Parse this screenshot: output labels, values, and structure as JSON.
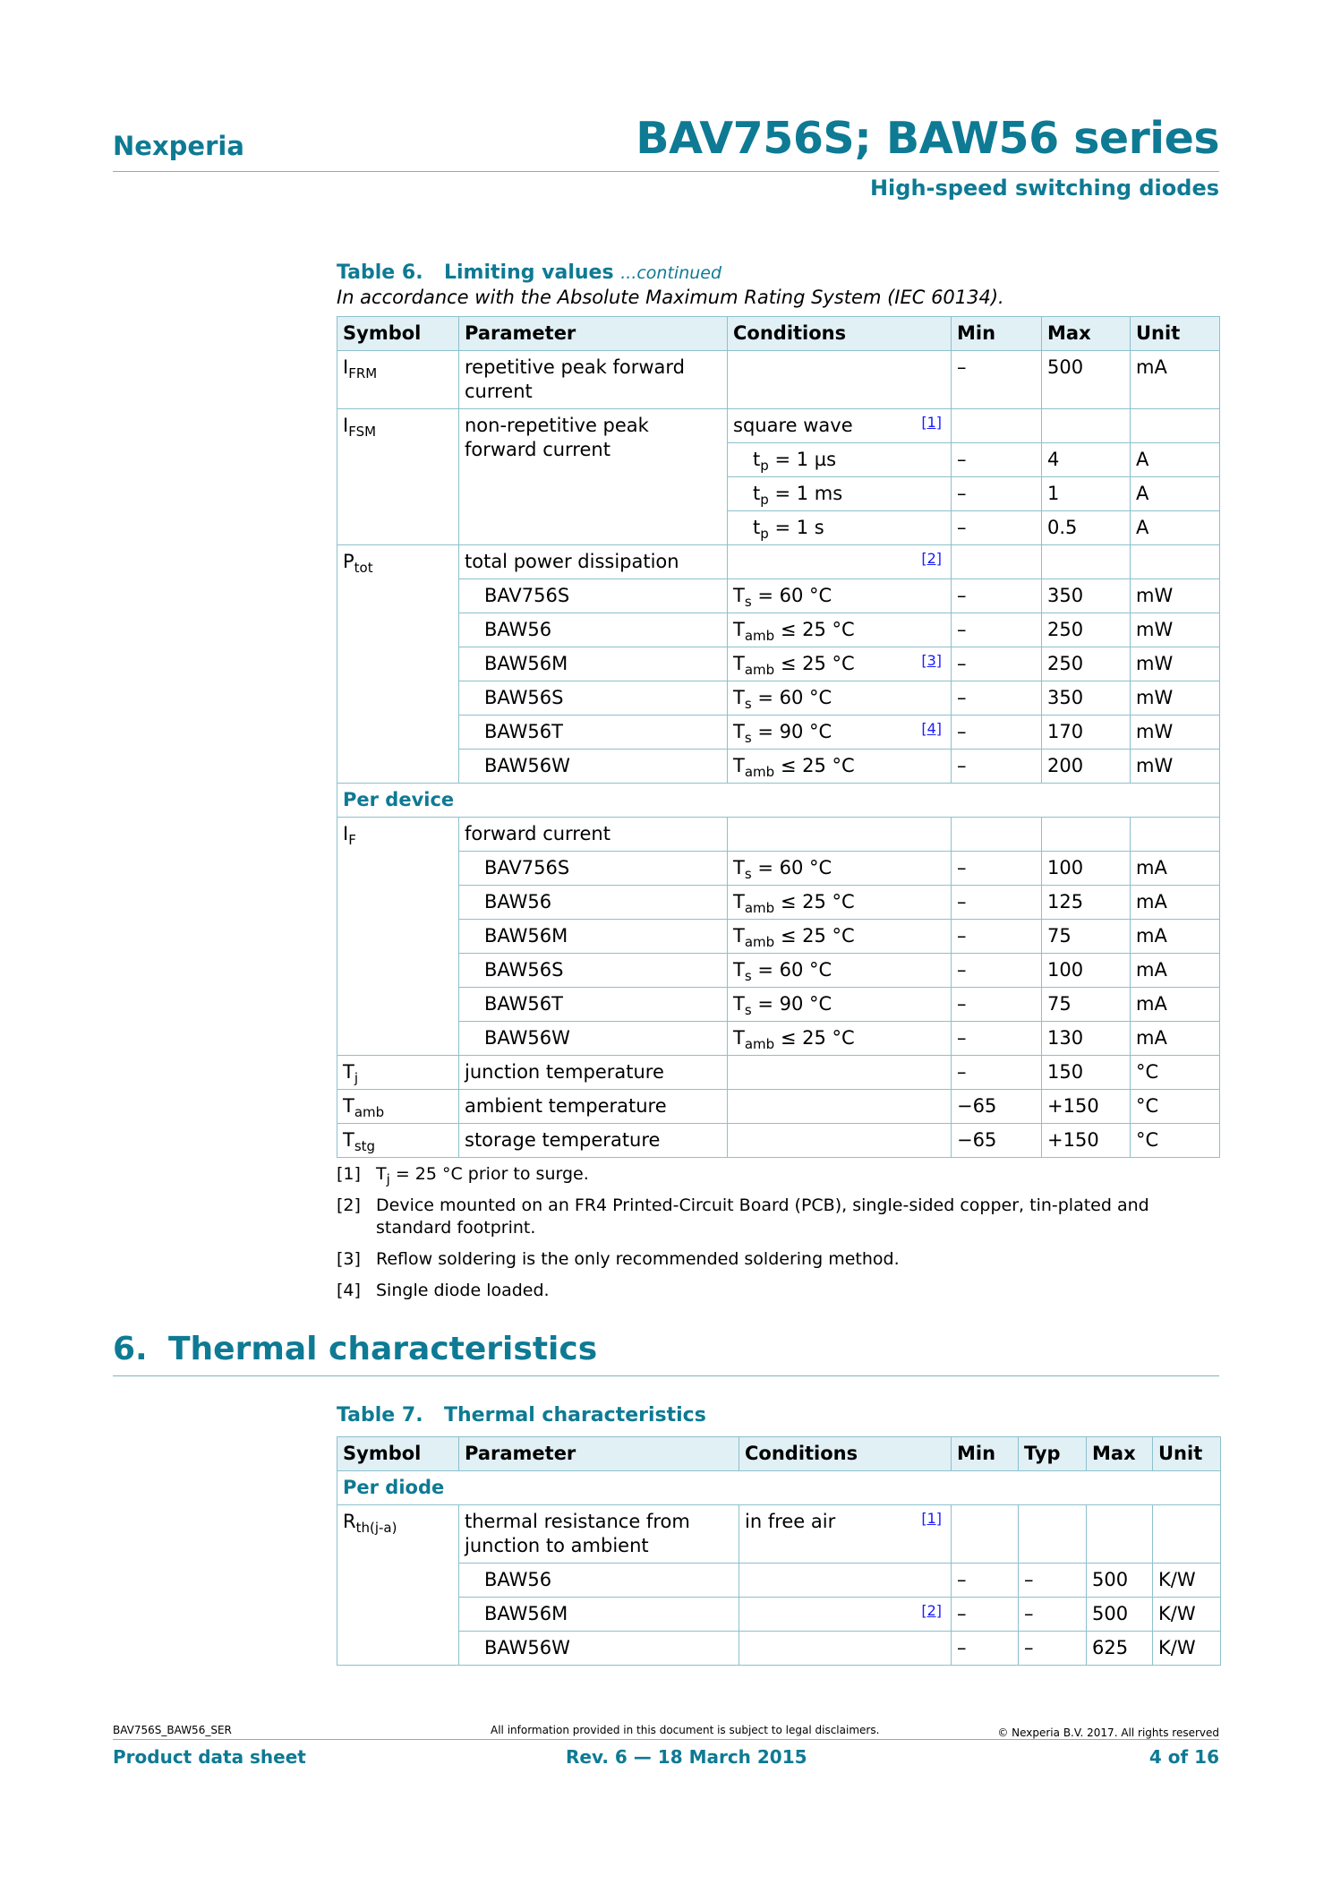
{
  "header": {
    "brand": "Nexperia",
    "title": "BAV756S; BAW56 series",
    "subtitle": "High-speed switching diodes"
  },
  "table6": {
    "number": "Table 6.",
    "title": "Limiting values",
    "continued": "...continued",
    "subtitle": "In accordance with the Absolute Maximum Rating System (IEC 60134).",
    "columns": [
      "Symbol",
      "Parameter",
      "Conditions",
      "Min",
      "Max",
      "Unit"
    ],
    "rows": [
      {
        "sym": "I",
        "symsub": "FRM",
        "param": "repetitive peak forward current",
        "cond": "",
        "csub": "",
        "crest": "",
        "note": "",
        "min": "–",
        "max": "500",
        "unit": "mA"
      },
      {
        "sym": "I",
        "symsub": "FSM",
        "param": "non-repetitive peak forward current",
        "cond": "square wave",
        "csub": "",
        "crest": "",
        "note": "[1]",
        "min": "",
        "max": "",
        "unit": ""
      },
      {
        "cont_sym": true,
        "cont_param": true,
        "cond": "t",
        "csub": "p",
        "crest": " = 1 µs",
        "cindent": true,
        "note": "",
        "min": "–",
        "max": "4",
        "unit": "A"
      },
      {
        "cont_sym": true,
        "cont_param": true,
        "cond": "t",
        "csub": "p",
        "crest": " = 1 ms",
        "cindent": true,
        "note": "",
        "min": "–",
        "max": "1",
        "unit": "A"
      },
      {
        "cont_sym": true,
        "cont_param": true,
        "cond": "t",
        "csub": "p",
        "crest": " = 1 s",
        "cindent": true,
        "note": "",
        "min": "–",
        "max": "0.5",
        "unit": "A"
      },
      {
        "sym": "P",
        "symsub": "tot",
        "param": "total power dissipation",
        "cond": "",
        "csub": "",
        "crest": "",
        "note": "[2]",
        "min": "",
        "max": "",
        "unit": ""
      },
      {
        "cont_sym": true,
        "param": "BAV756S",
        "pindent": true,
        "cond": "T",
        "csub": "s",
        "crest": " = 60 °C",
        "note": "",
        "min": "–",
        "max": "350",
        "unit": "mW"
      },
      {
        "cont_sym": true,
        "param": "BAW56",
        "pindent": true,
        "cond": "T",
        "csub": "amb",
        "crest": " ≤ 25 °C",
        "note": "",
        "min": "–",
        "max": "250",
        "unit": "mW"
      },
      {
        "cont_sym": true,
        "param": "BAW56M",
        "pindent": true,
        "cond": "T",
        "csub": "amb",
        "crest": " ≤ 25 °C",
        "note": "[3]",
        "min": "–",
        "max": "250",
        "unit": "mW"
      },
      {
        "cont_sym": true,
        "param": "BAW56S",
        "pindent": true,
        "cond": "T",
        "csub": "s",
        "crest": " = 60 °C",
        "note": "",
        "min": "–",
        "max": "350",
        "unit": "mW"
      },
      {
        "cont_sym": true,
        "param": "BAW56T",
        "pindent": true,
        "cond": "T",
        "csub": "s",
        "crest": " = 90 °C",
        "note": "[4]",
        "min": "–",
        "max": "170",
        "unit": "mW"
      },
      {
        "cont_sym": true,
        "param": "BAW56W",
        "pindent": true,
        "cond": "T",
        "csub": "amb",
        "crest": " ≤ 25 °C",
        "note": "",
        "min": "–",
        "max": "200",
        "unit": "mW"
      },
      {
        "group": "Per device"
      },
      {
        "sym": "I",
        "symsub": "F",
        "param": "forward current",
        "cond": "",
        "csub": "",
        "crest": "",
        "note": "",
        "min": "",
        "max": "",
        "unit": ""
      },
      {
        "cont_sym": true,
        "param": "BAV756S",
        "pindent": true,
        "cond": "T",
        "csub": "s",
        "crest": " = 60 °C",
        "note": "",
        "min": "–",
        "max": "100",
        "unit": "mA"
      },
      {
        "cont_sym": true,
        "param": "BAW56",
        "pindent": true,
        "cond": "T",
        "csub": "amb",
        "crest": " ≤ 25 °C",
        "note": "",
        "min": "–",
        "max": "125",
        "unit": "mA"
      },
      {
        "cont_sym": true,
        "param": "BAW56M",
        "pindent": true,
        "cond": "T",
        "csub": "amb",
        "crest": " ≤ 25 °C",
        "note": "",
        "min": "–",
        "max": "75",
        "unit": "mA"
      },
      {
        "cont_sym": true,
        "param": "BAW56S",
        "pindent": true,
        "cond": "T",
        "csub": "s",
        "crest": " = 60 °C",
        "note": "",
        "min": "–",
        "max": "100",
        "unit": "mA"
      },
      {
        "cont_sym": true,
        "param": "BAW56T",
        "pindent": true,
        "cond": "T",
        "csub": "s",
        "crest": " = 90 °C",
        "note": "",
        "min": "–",
        "max": "75",
        "unit": "mA"
      },
      {
        "cont_sym": true,
        "param": "BAW56W",
        "pindent": true,
        "cond": "T",
        "csub": "amb",
        "crest": " ≤ 25 °C",
        "note": "",
        "min": "–",
        "max": "130",
        "unit": "mA"
      },
      {
        "sym": "T",
        "symsub": "j",
        "param": "junction temperature",
        "cond": "",
        "csub": "",
        "crest": "",
        "note": "",
        "min": "–",
        "max": "150",
        "unit": "°C"
      },
      {
        "sym": "T",
        "symsub": "amb",
        "param": "ambient temperature",
        "cond": "",
        "csub": "",
        "crest": "",
        "note": "",
        "min": "−65",
        "max": "+150",
        "unit": "°C"
      },
      {
        "sym": "T",
        "symsub": "stg",
        "param": "storage temperature",
        "cond": "",
        "csub": "",
        "crest": "",
        "note": "",
        "min": "−65",
        "max": "+150",
        "unit": "°C"
      }
    ]
  },
  "notes": [
    {
      "ref": "[1]",
      "pre": "T",
      "sub": "j",
      "text": " = 25 °C prior to surge."
    },
    {
      "ref": "[2]",
      "pre": "",
      "sub": "",
      "text": "Device mounted on an FR4 Printed-Circuit Board (PCB), single-sided copper, tin-plated and standard footprint."
    },
    {
      "ref": "[3]",
      "pre": "",
      "sub": "",
      "text": "Reflow soldering is the only recommended soldering method."
    },
    {
      "ref": "[4]",
      "pre": "",
      "sub": "",
      "text": "Single diode loaded."
    }
  ],
  "section6": {
    "number": "6.",
    "title": "Thermal characteristics"
  },
  "table7": {
    "number": "Table 7.",
    "title": "Thermal characteristics",
    "columns": [
      "Symbol",
      "Parameter",
      "Conditions",
      "Min",
      "Typ",
      "Max",
      "Unit"
    ],
    "rows": [
      {
        "group": "Per diode"
      },
      {
        "sym": "R",
        "symsub": "th(j-a)",
        "param": "thermal resistance from junction to ambient",
        "cond": "in free air",
        "csub": "",
        "crest": "",
        "note": "[1]",
        "min": "",
        "typ": "",
        "max": "",
        "unit": ""
      },
      {
        "cont_sym": true,
        "param": "BAW56",
        "pindent": true,
        "cond": "",
        "csub": "",
        "crest": "",
        "note": "",
        "min": "–",
        "typ": "–",
        "max": "500",
        "unit": "K/W"
      },
      {
        "cont_sym": true,
        "param": "BAW56M",
        "pindent": true,
        "cond": "",
        "csub": "",
        "crest": "",
        "note": "[2]",
        "min": "–",
        "typ": "–",
        "max": "500",
        "unit": "K/W"
      },
      {
        "cont_sym": true,
        "param": "BAW56W",
        "pindent": true,
        "cond": "",
        "csub": "",
        "crest": "",
        "note": "",
        "min": "–",
        "typ": "–",
        "max": "625",
        "unit": "K/W"
      }
    ]
  },
  "footer": {
    "doc_id": "BAV756S_BAW56_SER",
    "disclaimer": "All information provided in this document is subject to legal disclaimers.",
    "copyright": "© Nexperia B.V. 2017. All rights reserved",
    "doc_type": "Product data sheet",
    "revision": "Rev. 6 — 18 March 2015",
    "page": "4 of 16"
  }
}
